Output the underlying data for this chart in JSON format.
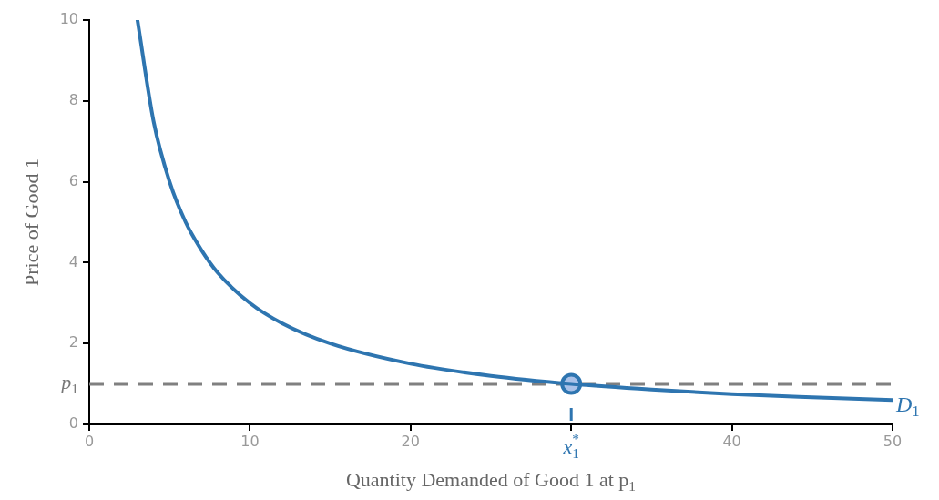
{
  "chart_data": {
    "type": "line",
    "xlabel": "Quantity Demanded of Good 1 at p$_{1}$",
    "ylabel": "Price of Good 1",
    "xlim": [
      0,
      50
    ],
    "ylim": [
      0,
      10
    ],
    "xticks": [
      0,
      10,
      20,
      {
        "value": 30,
        "label": null
      },
      40,
      50
    ],
    "yticks": [
      0,
      2,
      4,
      6,
      8,
      10
    ],
    "series": [
      {
        "name": "D$_{1}$",
        "type": "line",
        "color": "#2e75b0",
        "x": [
          3,
          4,
          5,
          6,
          7,
          8,
          10,
          12,
          15,
          20,
          25,
          30,
          35,
          40,
          45,
          50
        ],
        "values": [
          10,
          7.5,
          6,
          5,
          4.3,
          3.75,
          3,
          2.5,
          2,
          1.5,
          1.2,
          1,
          0.86,
          0.75,
          0.67,
          0.6
        ]
      },
      {
        "type": "scatter",
        "marker": "circle",
        "color": "#a9c1e8",
        "x": [
          30
        ],
        "values": [
          1
        ]
      }
    ],
    "ref_lines": [
      {
        "axis": "y",
        "value": 1,
        "label": "p$_{1}$",
        "color": "#808080",
        "line_style": "dashed"
      },
      {
        "axis": "x",
        "value": 30,
        "label": "x$_{1}$$^{*}$",
        "color": "#2e75b0",
        "line_style": "solid"
      }
    ]
  }
}
